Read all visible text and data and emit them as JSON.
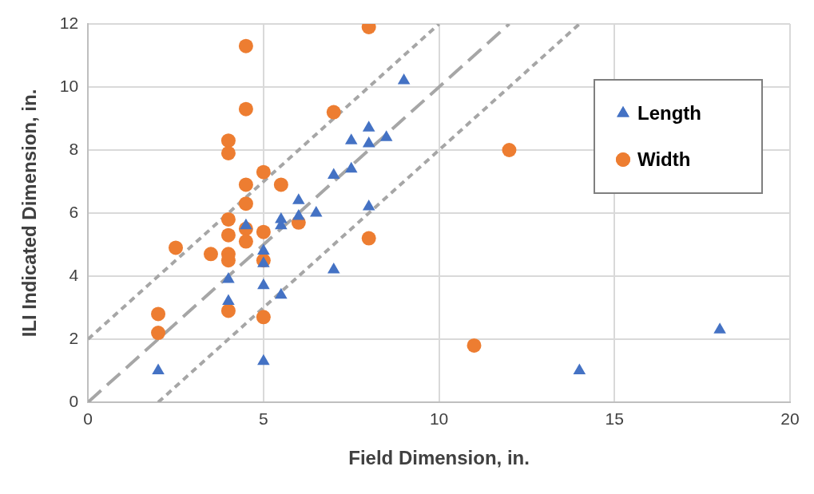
{
  "chart_data": {
    "type": "scatter",
    "xlabel": "Field Dimension, in.",
    "ylabel": "ILI Indicated Dimension, in.",
    "xlim": [
      0,
      20
    ],
    "xticks": [
      0,
      5,
      10,
      15,
      20
    ],
    "ylim": [
      0,
      12
    ],
    "yticks": [
      0,
      2,
      4,
      6,
      8,
      10,
      12
    ],
    "grid": true,
    "legend": "right",
    "series": [
      {
        "name": "Length",
        "color": "#4472c4",
        "marker": "triangle",
        "x": [
          2,
          4,
          4,
          4.5,
          5,
          5,
          5,
          5,
          5.5,
          5.5,
          5.5,
          6,
          6,
          6.5,
          7,
          7,
          7.5,
          7.5,
          8,
          8,
          8,
          8.5,
          9,
          14,
          18
        ],
        "values": [
          1.0,
          3.9,
          3.2,
          5.6,
          4.8,
          4.4,
          3.7,
          1.3,
          5.8,
          5.6,
          3.4,
          6.4,
          5.9,
          6.0,
          7.2,
          4.2,
          8.3,
          7.4,
          8.7,
          8.2,
          6.2,
          8.4,
          10.2,
          1.0,
          2.3
        ]
      },
      {
        "name": "Width",
        "color": "#ed7d31",
        "marker": "circle",
        "x": [
          2,
          2,
          2.5,
          3.5,
          4,
          4,
          4,
          4,
          4,
          4,
          4,
          4.5,
          4.5,
          4.5,
          4.5,
          4.5,
          4.5,
          5,
          5,
          5,
          5,
          5.5,
          6,
          7,
          8,
          8,
          11,
          12
        ],
        "values": [
          2.8,
          2.2,
          4.9,
          4.7,
          8.3,
          7.9,
          5.8,
          5.3,
          4.7,
          4.5,
          2.9,
          11.3,
          9.3,
          6.9,
          6.3,
          5.5,
          5.1,
          7.3,
          5.4,
          4.5,
          2.7,
          6.9,
          5.7,
          9.2,
          11.9,
          5.2,
          1.8,
          8.0
        ]
      },
      {
        "type": "line",
        "color": "#a6a6a6",
        "line_style": "dashed",
        "marker": "none",
        "x": [
          0,
          12
        ],
        "values": [
          0,
          12
        ]
      },
      {
        "type": "line",
        "color": "#a6a6a6",
        "line_style": "dotted",
        "marker": "none",
        "x": [
          0,
          10
        ],
        "values": [
          2,
          12
        ]
      },
      {
        "type": "line",
        "color": "#a6a6a6",
        "line_style": "dotted",
        "marker": "none",
        "x": [
          2,
          14
        ],
        "values": [
          0,
          12
        ]
      }
    ]
  }
}
